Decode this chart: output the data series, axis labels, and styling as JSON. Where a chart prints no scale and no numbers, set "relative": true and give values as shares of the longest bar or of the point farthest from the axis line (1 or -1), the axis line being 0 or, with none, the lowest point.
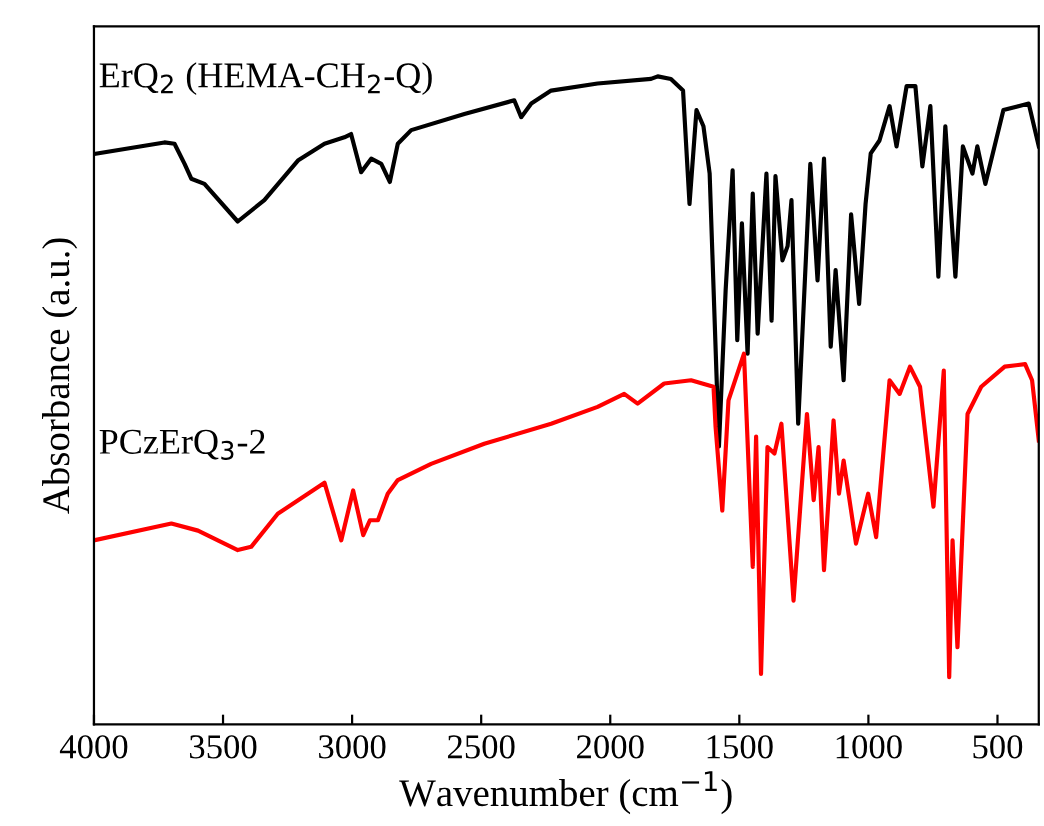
{
  "chart_data": {
    "type": "line",
    "relative": true,
    "xlabel": "Wavenumber (cm$^{−1}$)",
    "ylabel": "Absorbance (a.u.)",
    "xlim": [
      4000,
      340
    ],
    "xticks": [
      4000,
      3500,
      3000,
      2500,
      2000,
      1500,
      1000,
      500
    ],
    "grid": false,
    "marker": "none",
    "line_style": "solid",
    "series": [
      {
        "name": "ErQ$_{2}$ (HEMA-CH$_{2}$-Q)",
        "color": "#000000",
        "x": [
          4000,
          3727,
          3688,
          3649,
          3623,
          3572,
          3443,
          3340,
          3210,
          3107,
          3030,
          3004,
          2965,
          2926,
          2887,
          2854,
          2823,
          2771,
          2565,
          2372,
          2345,
          2306,
          2229,
          2049,
          1842,
          1816,
          1765,
          1718,
          1693,
          1666,
          1639,
          1615,
          1579,
          1553,
          1526,
          1508,
          1490,
          1468,
          1448,
          1429,
          1395,
          1375,
          1360,
          1333,
          1313,
          1298,
          1272,
          1225,
          1197,
          1172,
          1146,
          1127,
          1096,
          1067,
          1036,
          1011,
          991,
          957,
          918,
          891,
          852,
          818,
          791,
          760,
          729,
          702,
          663,
          634,
          597,
          578,
          547,
          477,
          419,
          379,
          340
        ],
        "values": [
          0.88,
          0.898,
          0.896,
          0.865,
          0.842,
          0.834,
          0.776,
          0.809,
          0.87,
          0.896,
          0.906,
          0.911,
          0.852,
          0.873,
          0.865,
          0.837,
          0.896,
          0.917,
          0.942,
          0.963,
          0.937,
          0.958,
          0.978,
          0.989,
          0.996,
          1.0,
          0.996,
          0.978,
          0.803,
          0.948,
          0.923,
          0.85,
          0.429,
          0.67,
          0.855,
          0.593,
          0.773,
          0.572,
          0.819,
          0.603,
          0.85,
          0.623,
          0.846,
          0.716,
          0.738,
          0.809,
          0.464,
          0.865,
          0.685,
          0.873,
          0.583,
          0.701,
          0.531,
          0.787,
          0.649,
          0.803,
          0.881,
          0.901,
          0.954,
          0.892,
          0.985,
          0.985,
          0.861,
          0.954,
          0.691,
          0.923,
          0.691,
          0.892,
          0.85,
          0.892,
          0.834,
          0.948,
          0.954,
          0.958,
          0.892
        ]
      },
      {
        "name": "PCzErQ$_{3}$-2",
        "color": "#ff0000",
        "x": [
          4000,
          3700,
          3597,
          3443,
          3391,
          3288,
          3107,
          3068,
          3042,
          2996,
          2957,
          2931,
          2900,
          2862,
          2823,
          2694,
          2488,
          2229,
          2049,
          1946,
          1894,
          1791,
          1687,
          1600,
          1592,
          1566,
          1542,
          1482,
          1448,
          1435,
          1416,
          1391,
          1364,
          1337,
          1290,
          1238,
          1212,
          1193,
          1172,
          1135,
          1114,
          1096,
          1048,
          1001,
          970,
          918,
          879,
          839,
          800,
          748,
          708,
          687,
          674,
          655,
          616,
          563,
          472,
          393,
          366,
          340
        ],
        "values": [
          0.284,
          0.31,
          0.299,
          0.269,
          0.274,
          0.325,
          0.373,
          0.32,
          0.284,
          0.361,
          0.292,
          0.315,
          0.315,
          0.356,
          0.377,
          0.402,
          0.433,
          0.464,
          0.49,
          0.51,
          0.495,
          0.526,
          0.531,
          0.521,
          0.459,
          0.33,
          0.5,
          0.572,
          0.243,
          0.444,
          0.078,
          0.428,
          0.418,
          0.464,
          0.191,
          0.479,
          0.346,
          0.428,
          0.238,
          0.469,
          0.356,
          0.407,
          0.279,
          0.356,
          0.289,
          0.531,
          0.51,
          0.552,
          0.521,
          0.336,
          0.546,
          0.073,
          0.284,
          0.119,
          0.479,
          0.521,
          0.552,
          0.556,
          0.531,
          0.438
        ]
      }
    ]
  }
}
